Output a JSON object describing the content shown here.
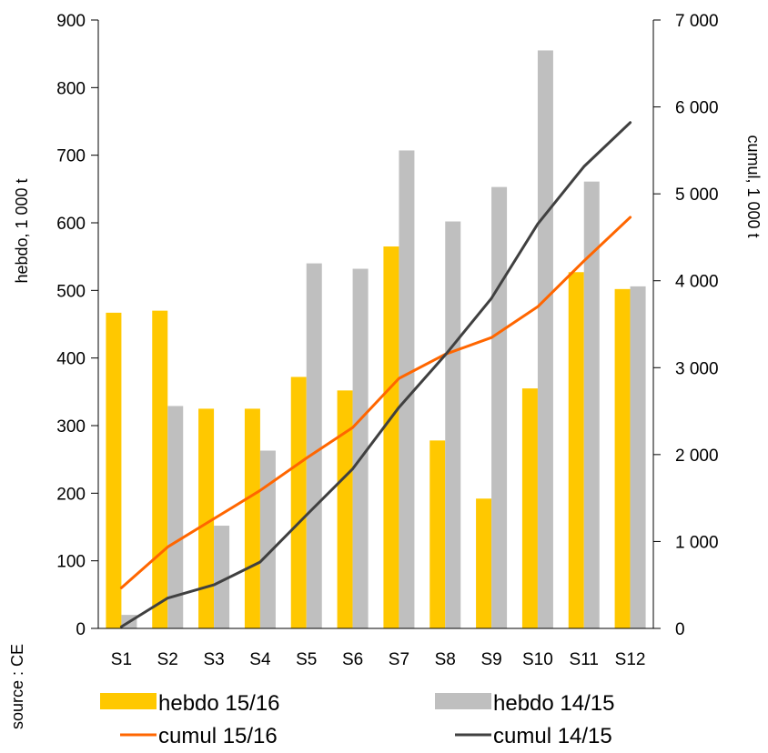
{
  "chart_data": {
    "type": "bar",
    "categories": [
      "S1",
      "S2",
      "S3",
      "S4",
      "S5",
      "S6",
      "S7",
      "S8",
      "S9",
      "S10",
      "S11",
      "S12"
    ],
    "series": [
      {
        "name": "hebdo 15/16",
        "type": "bar",
        "axis": "left",
        "color": "#FFC800",
        "values": [
          467,
          470,
          325,
          325,
          372,
          352,
          565,
          278,
          192,
          355,
          527,
          502
        ]
      },
      {
        "name": "hebdo 14/15",
        "type": "bar",
        "axis": "left",
        "color": "#BFBFBF",
        "values": [
          20,
          329,
          152,
          263,
          540,
          532,
          707,
          602,
          653,
          855,
          661,
          506
        ]
      },
      {
        "name": "cumul 15/16",
        "type": "line",
        "axis": "right",
        "color": "#FF6600",
        "values": [
          467,
          937,
          1262,
          1587,
          1959,
          2311,
          2876,
          3154,
          3346,
          3701,
          4228,
          4730
        ]
      },
      {
        "name": "cumul 14/15",
        "type": "line",
        "axis": "right",
        "color": "#404040",
        "values": [
          20,
          349,
          501,
          764,
          1304,
          1836,
          2543,
          3145,
          3798,
          4653,
          5314,
          5820
        ]
      }
    ],
    "y_left": {
      "label": "hebdo, 1 000 t",
      "min": 0,
      "max": 900,
      "ticks": [
        "0",
        "100",
        "200",
        "300",
        "400",
        "500",
        "600",
        "700",
        "800",
        "900"
      ]
    },
    "y_right": {
      "label": "cumul, 1 000 t",
      "min": 0,
      "max": 7000,
      "ticks": [
        "0",
        "1 000",
        "2 000",
        "3 000",
        "4 000",
        "5 000",
        "6 000",
        "7 000"
      ]
    },
    "source": "source : CE",
    "legend_position": "bottom",
    "grid": false
  }
}
